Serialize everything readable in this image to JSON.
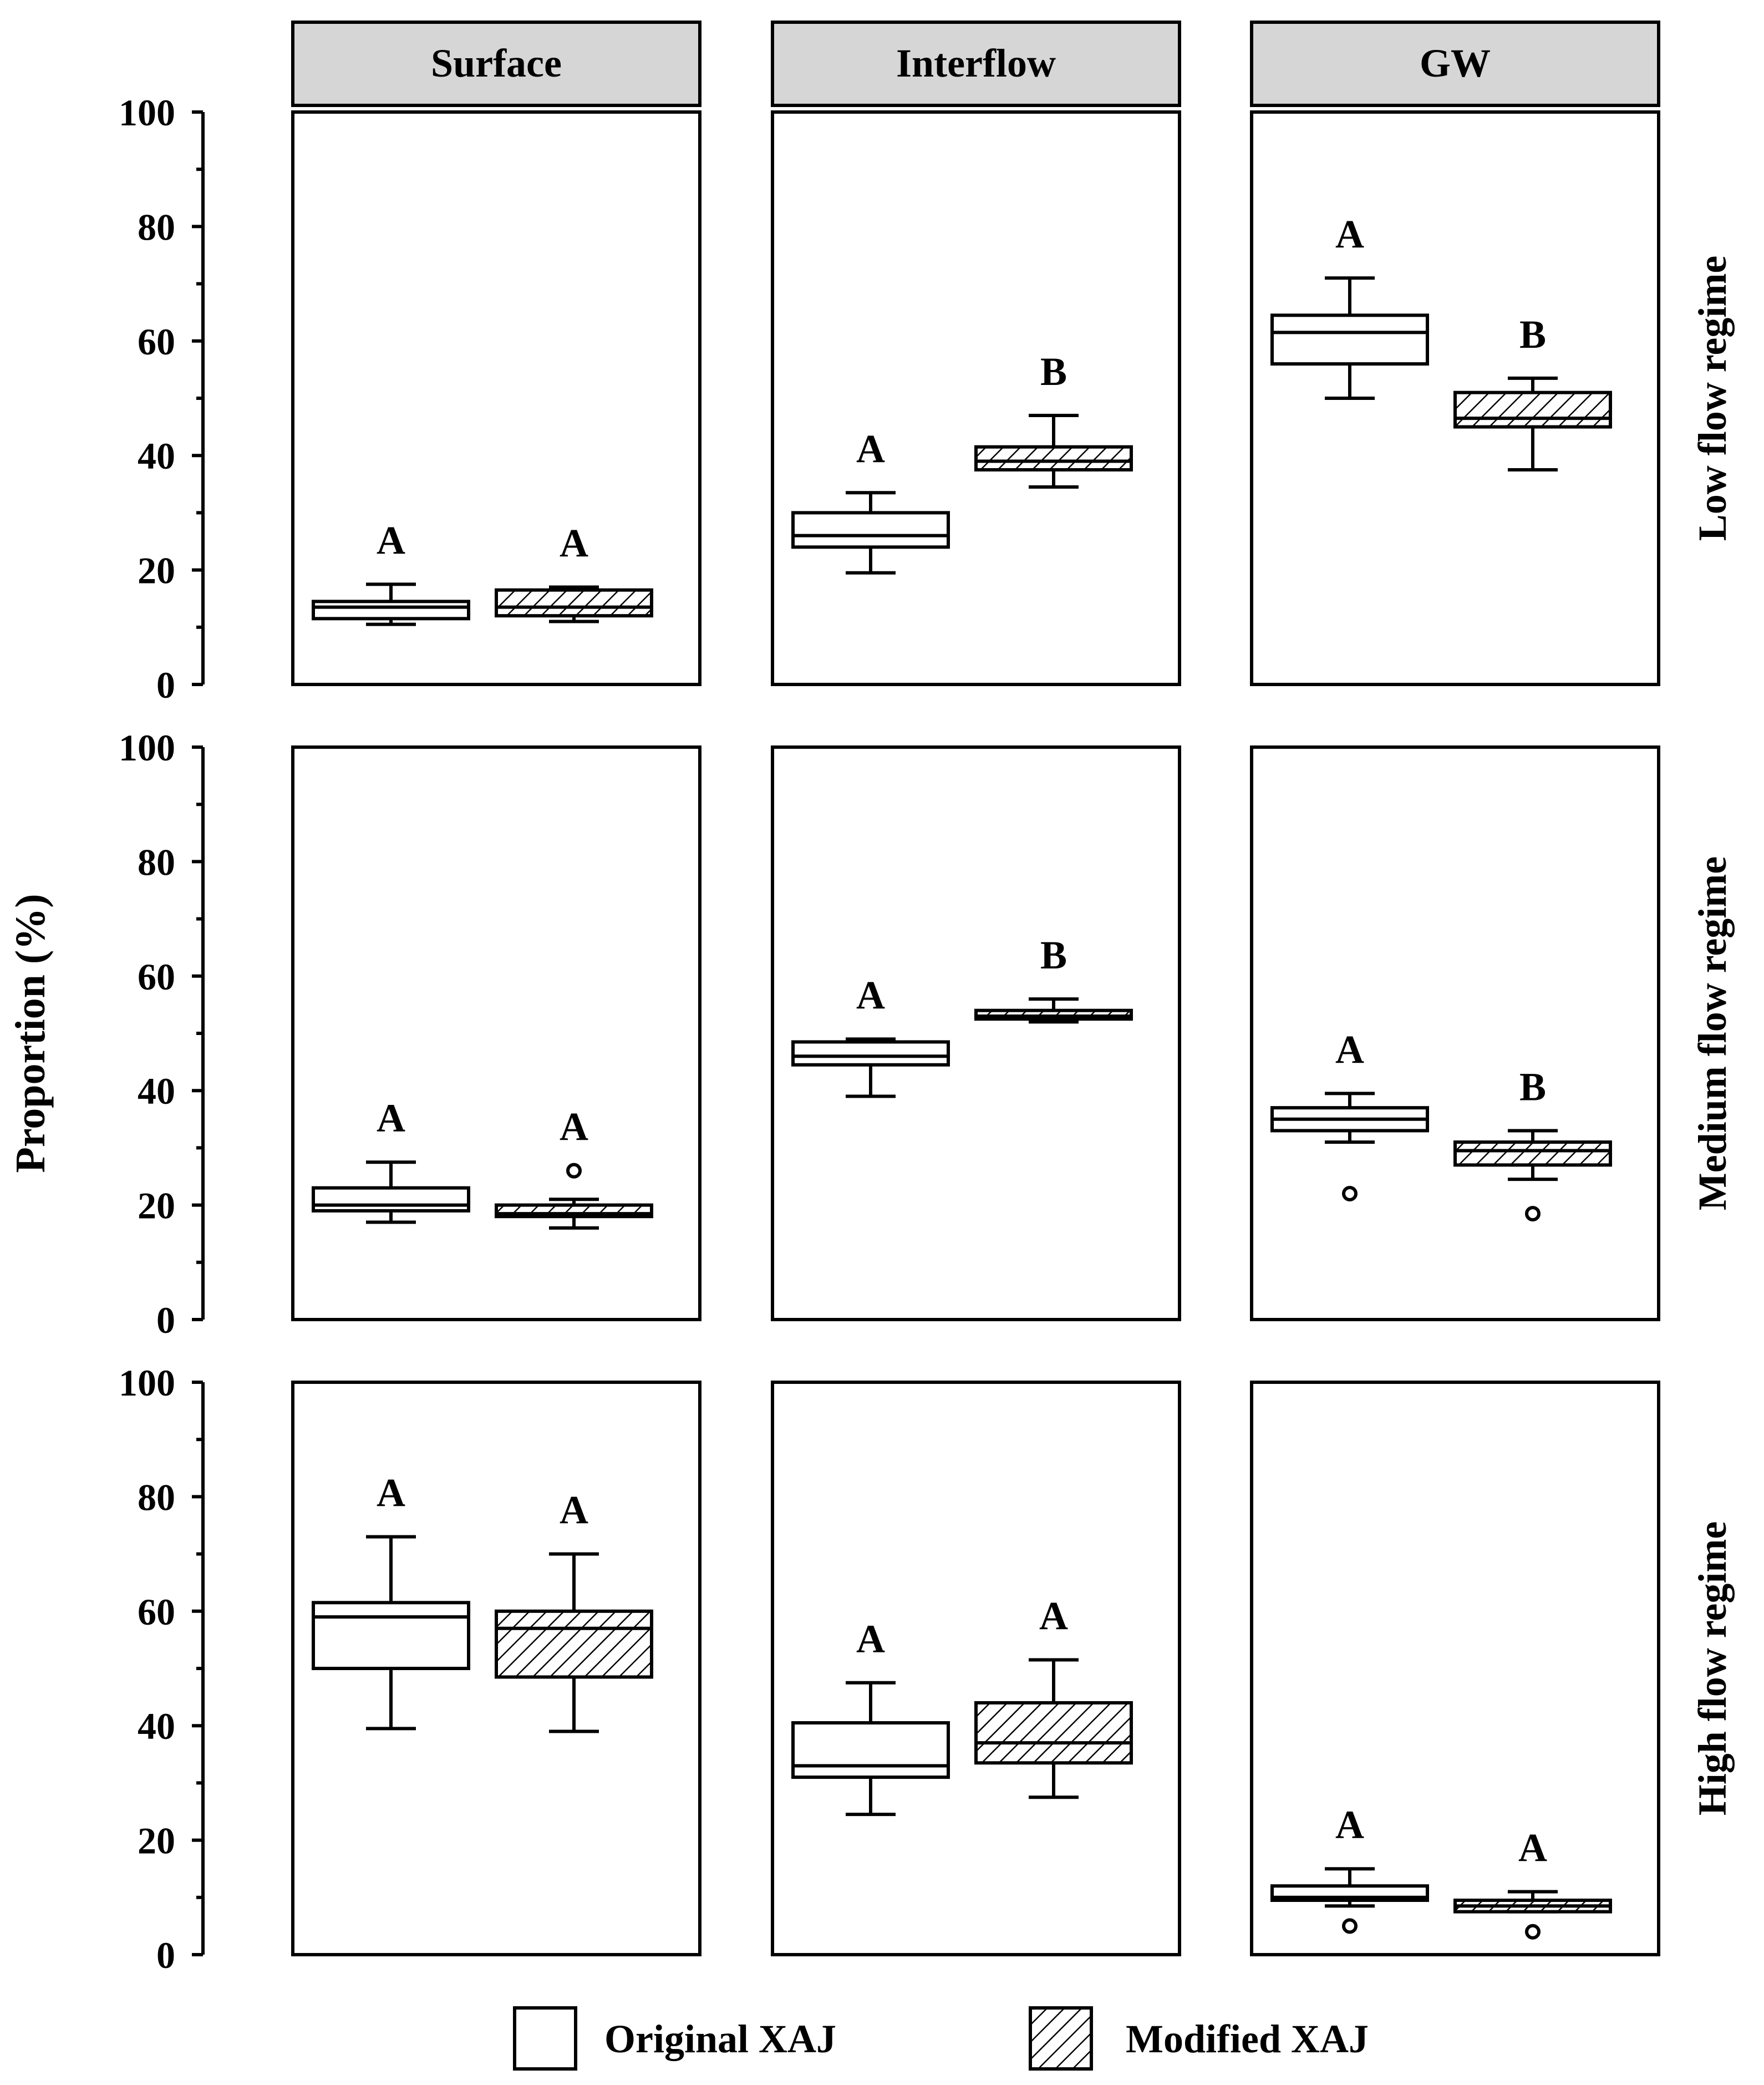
{
  "chart_data": {
    "type": "boxplot",
    "y_axis": {
      "label": "Proportion (%)",
      "range": [
        0,
        100
      ],
      "ticks": [
        0,
        20,
        40,
        60,
        80,
        100
      ],
      "minor_ticks": [
        10,
        30,
        50,
        70,
        90
      ]
    },
    "columns": [
      "Surface",
      "Interflow",
      "GW"
    ],
    "rows": [
      "Low flow regime",
      "Medium flow regime",
      "High flow regime"
    ],
    "legend": [
      {
        "label": "Original XAJ",
        "pattern": "none"
      },
      {
        "label": "Modified XAJ",
        "pattern": "diagonal-hatch"
      }
    ],
    "panels": [
      {
        "row": "Low flow regime",
        "column": "Surface",
        "boxes": [
          {
            "series": "Original XAJ",
            "min": 10.5,
            "q1": 11.5,
            "median": 13.5,
            "q3": 14.5,
            "max": 17.5,
            "outliers": [],
            "letter": "A"
          },
          {
            "series": "Modified XAJ",
            "min": 11.0,
            "q1": 12.0,
            "median": 13.5,
            "q3": 16.5,
            "max": 17.0,
            "outliers": [],
            "letter": "A"
          }
        ]
      },
      {
        "row": "Low flow regime",
        "column": "Interflow",
        "boxes": [
          {
            "series": "Original XAJ",
            "min": 19.5,
            "q1": 24.0,
            "median": 26.0,
            "q3": 30.0,
            "max": 33.5,
            "outliers": [],
            "letter": "A"
          },
          {
            "series": "Modified XAJ",
            "min": 34.5,
            "q1": 37.5,
            "median": 39.0,
            "q3": 41.5,
            "max": 47.0,
            "outliers": [],
            "letter": "B"
          }
        ]
      },
      {
        "row": "Low flow regime",
        "column": "GW",
        "boxes": [
          {
            "series": "Original XAJ",
            "min": 50.0,
            "q1": 56.0,
            "median": 61.5,
            "q3": 64.5,
            "max": 71.0,
            "outliers": [],
            "letter": "A"
          },
          {
            "series": "Modified XAJ",
            "min": 37.5,
            "q1": 45.0,
            "median": 46.5,
            "q3": 51.0,
            "max": 53.5,
            "outliers": [],
            "letter": "B"
          }
        ]
      },
      {
        "row": "Medium flow regime",
        "column": "Surface",
        "boxes": [
          {
            "series": "Original XAJ",
            "min": 17.0,
            "q1": 19.0,
            "median": 20.0,
            "q3": 23.0,
            "max": 27.5,
            "outliers": [],
            "letter": "A"
          },
          {
            "series": "Modified XAJ",
            "min": 16.0,
            "q1": 18.0,
            "median": 18.5,
            "q3": 20.0,
            "max": 21.0,
            "outliers": [
              26.0
            ],
            "letter": "A"
          }
        ]
      },
      {
        "row": "Medium flow regime",
        "column": "Interflow",
        "boxes": [
          {
            "series": "Original XAJ",
            "min": 39.0,
            "q1": 44.5,
            "median": 46.0,
            "q3": 48.5,
            "max": 49.0,
            "outliers": [],
            "letter": "A"
          },
          {
            "series": "Modified XAJ",
            "min": 52.0,
            "q1": 52.5,
            "median": 53.0,
            "q3": 54.0,
            "max": 56.0,
            "outliers": [],
            "letter": "B"
          }
        ]
      },
      {
        "row": "Medium flow regime",
        "column": "GW",
        "boxes": [
          {
            "series": "Original XAJ",
            "min": 31.0,
            "q1": 33.0,
            "median": 35.0,
            "q3": 37.0,
            "max": 39.5,
            "outliers": [
              22.0
            ],
            "letter": "A"
          },
          {
            "series": "Modified XAJ",
            "min": 24.5,
            "q1": 27.0,
            "median": 29.5,
            "q3": 31.0,
            "max": 33.0,
            "outliers": [
              18.5
            ],
            "letter": "B"
          }
        ]
      },
      {
        "row": "High flow regime",
        "column": "Surface",
        "boxes": [
          {
            "series": "Original XAJ",
            "min": 39.5,
            "q1": 50.0,
            "median": 59.0,
            "q3": 61.5,
            "max": 73.0,
            "outliers": [],
            "letter": "A"
          },
          {
            "series": "Modified XAJ",
            "min": 39.0,
            "q1": 48.5,
            "median": 57.0,
            "q3": 60.0,
            "max": 70.0,
            "outliers": [],
            "letter": "A"
          }
        ]
      },
      {
        "row": "High flow regime",
        "column": "Interflow",
        "boxes": [
          {
            "series": "Original XAJ",
            "min": 24.5,
            "q1": 31.0,
            "median": 33.0,
            "q3": 40.5,
            "max": 47.5,
            "outliers": [],
            "letter": "A"
          },
          {
            "series": "Modified XAJ",
            "min": 27.5,
            "q1": 33.5,
            "median": 37.0,
            "q3": 44.0,
            "max": 51.5,
            "outliers": [],
            "letter": "A"
          }
        ]
      },
      {
        "row": "High flow regime",
        "column": "GW",
        "boxes": [
          {
            "series": "Original XAJ",
            "min": 8.5,
            "q1": 9.5,
            "median": 10.0,
            "q3": 12.0,
            "max": 15.0,
            "outliers": [
              5.0
            ],
            "letter": "A"
          },
          {
            "series": "Modified XAJ",
            "min": 7.5,
            "q1": 7.5,
            "median": 8.5,
            "q3": 9.5,
            "max": 11.0,
            "outliers": [
              4.0
            ],
            "letter": "A"
          }
        ]
      }
    ]
  }
}
